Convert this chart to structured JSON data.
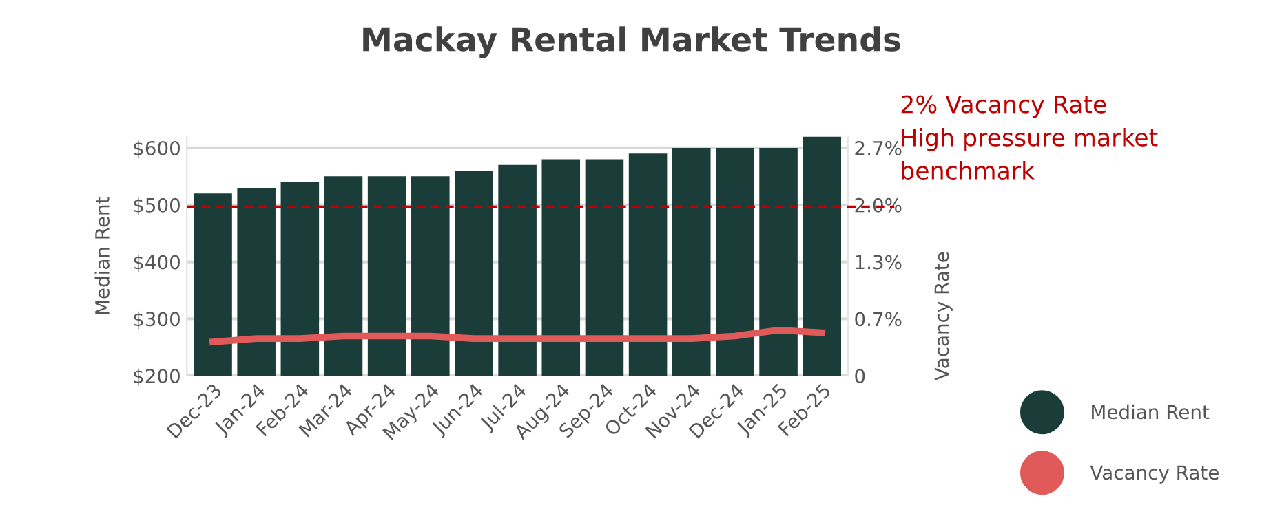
{
  "chart_data": {
    "type": "bar",
    "title": "Mackay Rental Market Trends",
    "ylabel": "Median Rent",
    "y2label": "Vacancy Rate",
    "categories": [
      "Dec-23",
      "Jan-24",
      "Feb-24",
      "Mar-24",
      "Apr-24",
      "May-24",
      "Jun-24",
      "Jul-24",
      "Aug-24",
      "Sep-24",
      "Oct-24",
      "Nov-24",
      "Dec-24",
      "Jan-25",
      "Feb-25"
    ],
    "series": [
      {
        "name": "Median Rent",
        "color": "#1a3d3a",
        "values": [
          520,
          530,
          540,
          550,
          550,
          550,
          560,
          570,
          580,
          580,
          590,
          600,
          600,
          600,
          620
        ]
      },
      {
        "name": "Vacancy Rate",
        "type": "line",
        "axis": "y2",
        "color": "#e05a5a",
        "values": [
          0.4,
          0.44,
          0.44,
          0.47,
          0.47,
          0.47,
          0.44,
          0.44,
          0.44,
          0.44,
          0.44,
          0.44,
          0.47,
          0.54,
          0.51
        ]
      }
    ],
    "ylim": [
      200,
      620
    ],
    "yticks": [
      {
        "value": 200,
        "label": "$200"
      },
      {
        "value": 300,
        "label": "$300"
      },
      {
        "value": 400,
        "label": "$400"
      },
      {
        "value": 500,
        "label": "$500"
      },
      {
        "value": 600,
        "label": "$600"
      }
    ],
    "y2lim": [
      0,
      2.835
    ],
    "y2ticks": [
      {
        "value": 0,
        "label": "0"
      },
      {
        "value": 0.675,
        "label": "0.7%"
      },
      {
        "value": 1.35,
        "label": "1.3%"
      },
      {
        "value": 2.025,
        "label": "2.0%"
      },
      {
        "value": 2.7,
        "label": "2.7%"
      }
    ],
    "ref_lines": [
      {
        "axis": "y2",
        "value": 2,
        "label": "2% Vacancy Rate\nHigh pressure market\nbenchmark",
        "color": "#c00000",
        "line_style": "dashed"
      }
    ],
    "grid": "y",
    "legend": "right"
  }
}
